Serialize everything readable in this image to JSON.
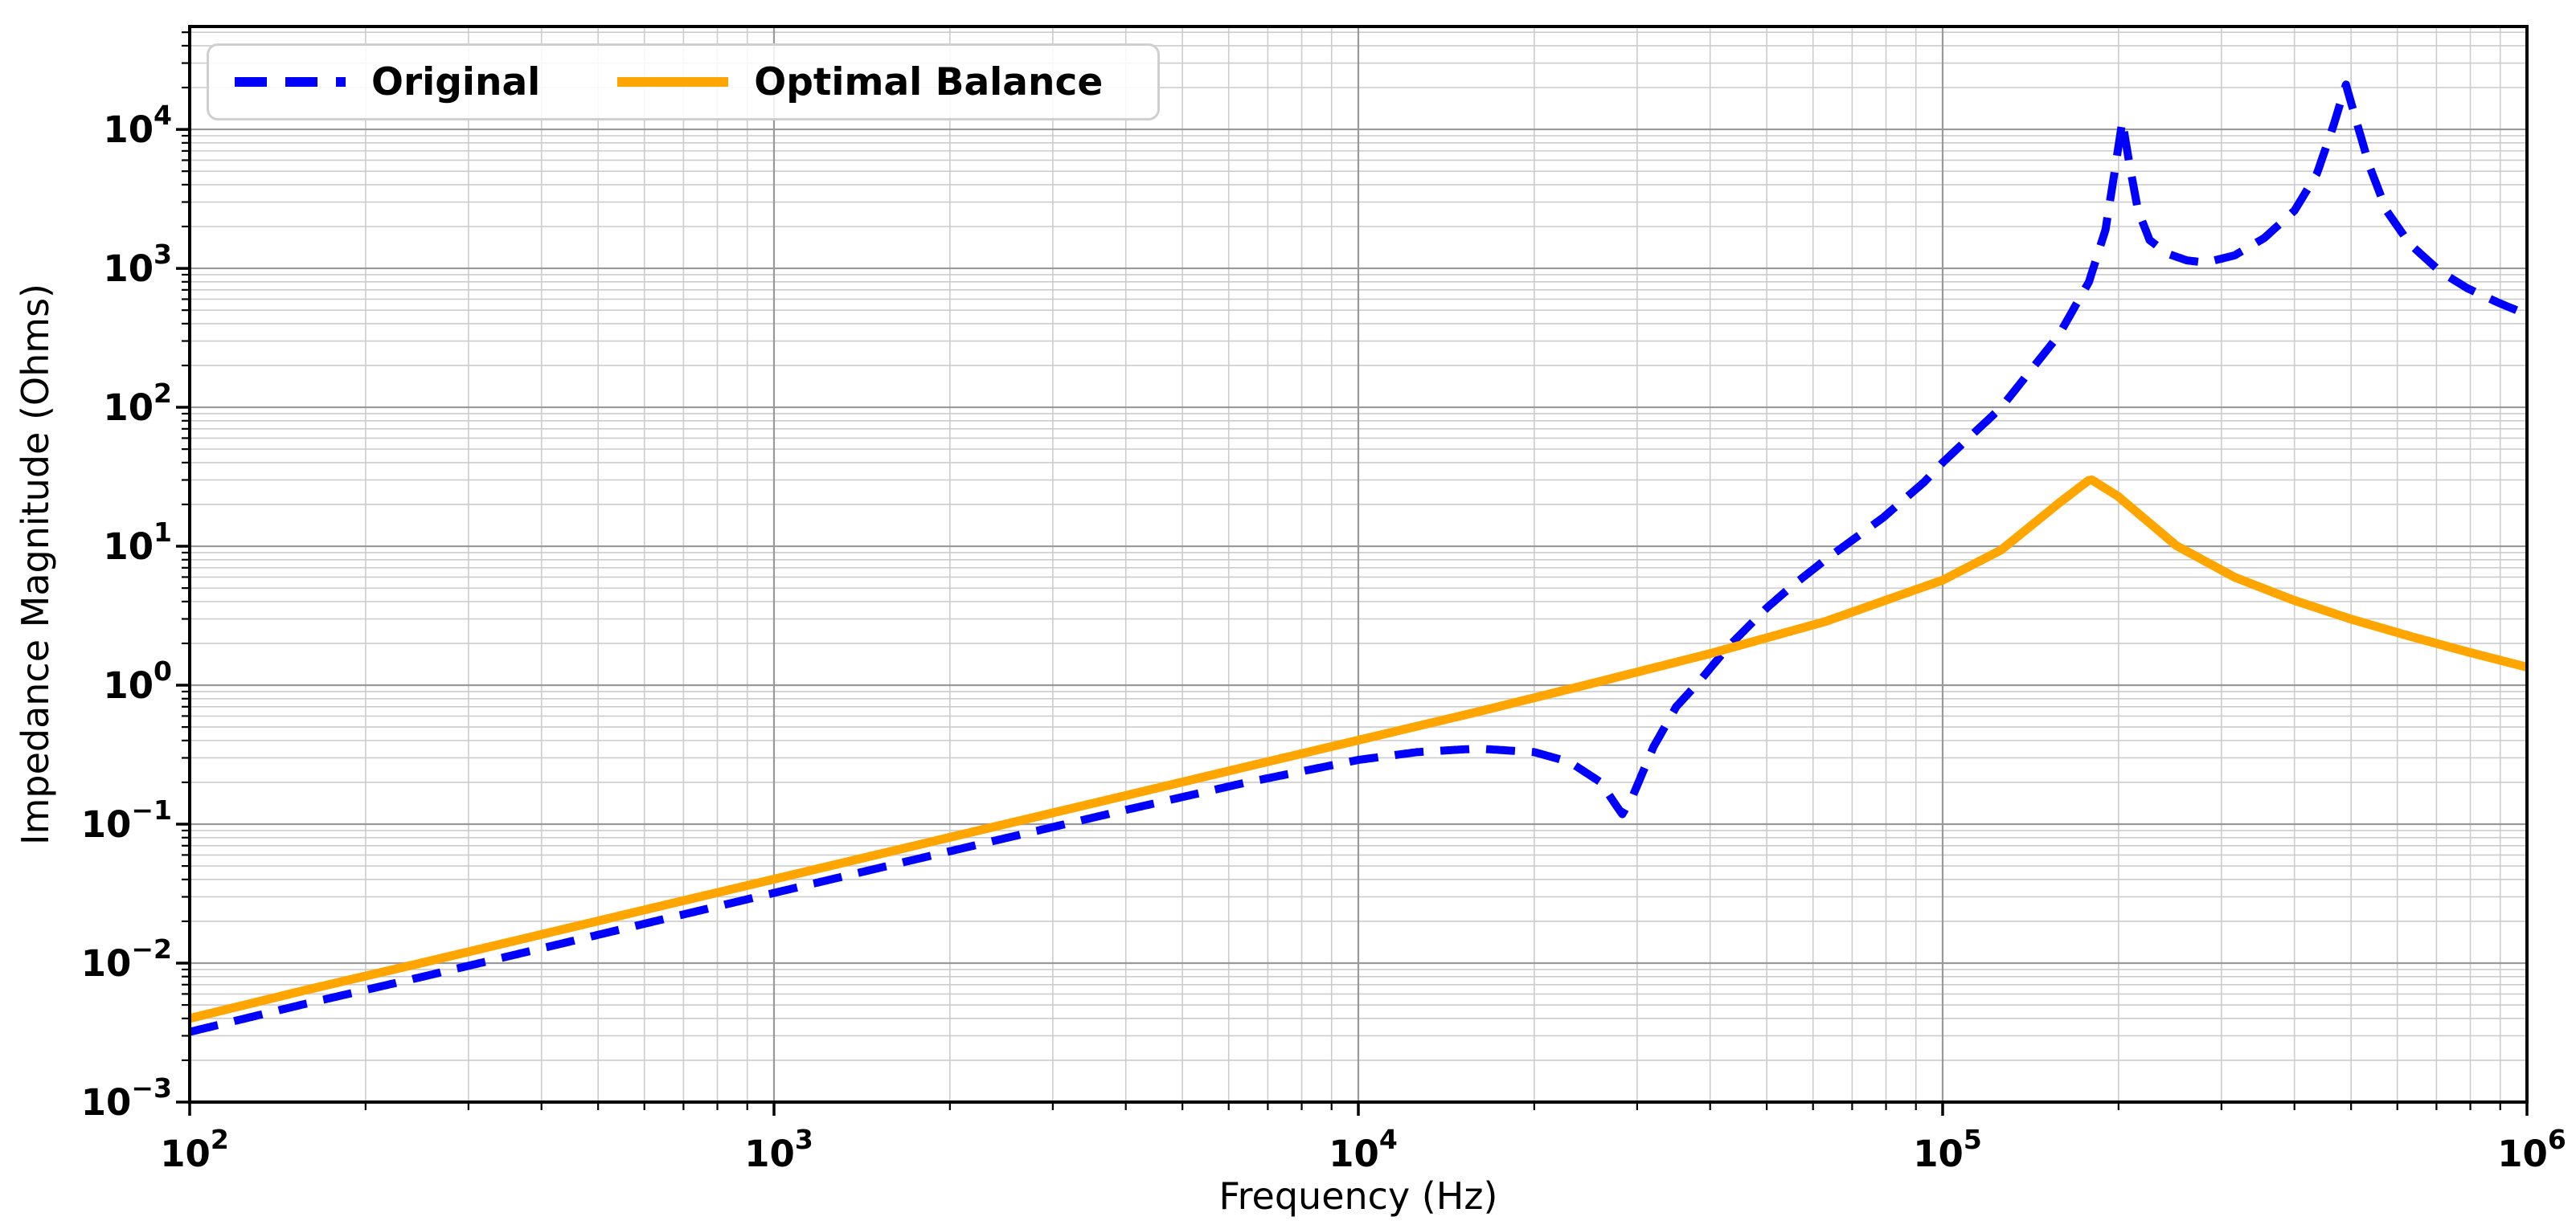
{
  "figure": {
    "background": "#ffffff",
    "plot_background": "#ffffff",
    "spine_color": "#000000"
  },
  "axes": {
    "x": {
      "label": "Frequency (Hz)",
      "scale": "log",
      "min": 100,
      "max": 1000000,
      "tick_labels": [
        "10^2",
        "10^3",
        "10^4",
        "10^5",
        "10^6"
      ],
      "tick_exponents": [
        2,
        3,
        4,
        5,
        6
      ]
    },
    "y": {
      "label": "Impedance Magnitude (Ohms)",
      "scale": "log",
      "min": 0.001,
      "max": 55000,
      "tick_labels": [
        "10^-3",
        "10^-2",
        "10^-1",
        "10^0",
        "10^1",
        "10^2",
        "10^3",
        "10^4"
      ],
      "tick_exponents": [
        -3,
        -2,
        -1,
        0,
        1,
        2,
        3,
        4
      ]
    },
    "grid": {
      "major_color": "#999999",
      "minor_color": "#cccccc"
    }
  },
  "legend": {
    "position": "upper left",
    "items": [
      {
        "label": "Original",
        "color": "#0000ff",
        "line_style": "dashed"
      },
      {
        "label": "Optimal Balance",
        "color": "#ffa500",
        "line_style": "solid"
      }
    ]
  },
  "chart_data": {
    "type": "line",
    "xscale": "log",
    "yscale": "log",
    "xlabel": "Frequency (Hz)",
    "ylabel": "Impedance Magnitude (Ohms)",
    "xlim": [
      100,
      1000000
    ],
    "ylim": [
      0.001,
      55000
    ],
    "grid": true,
    "legend_position": "upper left",
    "series": [
      {
        "name": "Original",
        "color": "#0000ff",
        "line_style": "dashed",
        "line_width": 10,
        "x": [
          100,
          158,
          251,
          398,
          631,
          1000,
          1585,
          2512,
          3981,
          6310,
          10000,
          12600,
          16000,
          20000,
          23000,
          26000,
          27500,
          28300,
          29500,
          32000,
          35000,
          38000,
          43000,
          50000,
          55000,
          63000,
          79000,
          93000,
          100000,
          126000,
          158000,
          178000,
          190000,
          197000,
          203000,
          209000,
          216000,
          226000,
          242000,
          262000,
          282000,
          316000,
          355000,
          400000,
          437000,
          466000,
          490000,
          512000,
          537000,
          575000,
          630000,
          710000,
          790000,
          890000,
          1000000
        ],
        "y": [
          0.0032,
          0.0051,
          0.008,
          0.0127,
          0.0202,
          0.032,
          0.0507,
          0.08,
          0.126,
          0.196,
          0.29,
          0.33,
          0.35,
          0.33,
          0.28,
          0.2,
          0.14,
          0.118,
          0.16,
          0.36,
          0.7,
          1.02,
          1.9,
          3.6,
          5.1,
          8.0,
          16,
          29,
          40,
          100,
          330,
          800,
          1900,
          5000,
          11500,
          5500,
          2600,
          1600,
          1280,
          1140,
          1100,
          1240,
          1650,
          2600,
          4800,
          10500,
          21000,
          11000,
          5500,
          2600,
          1500,
          950,
          720,
          570,
          465
        ]
      },
      {
        "name": "Optimal Balance",
        "color": "#ffa500",
        "line_style": "solid",
        "line_width": 11,
        "x": [
          100,
          158,
          251,
          398,
          631,
          1000,
          1585,
          2512,
          3981,
          6310,
          10000,
          15850,
          25120,
          39810,
          63100,
          100000,
          125900,
          158500,
          177800,
          180100,
          199500,
          251200,
          316200,
          398100,
          501200,
          631000,
          794300,
          1000000
        ],
        "y": [
          0.004,
          0.0064,
          0.0101,
          0.016,
          0.0254,
          0.0402,
          0.0637,
          0.101,
          0.16,
          0.254,
          0.402,
          0.637,
          1.03,
          1.68,
          2.88,
          5.7,
          9.4,
          20.6,
          29.8,
          30.0,
          22.9,
          10.1,
          5.98,
          4.1,
          2.98,
          2.25,
          1.73,
          1.35
        ]
      }
    ]
  }
}
